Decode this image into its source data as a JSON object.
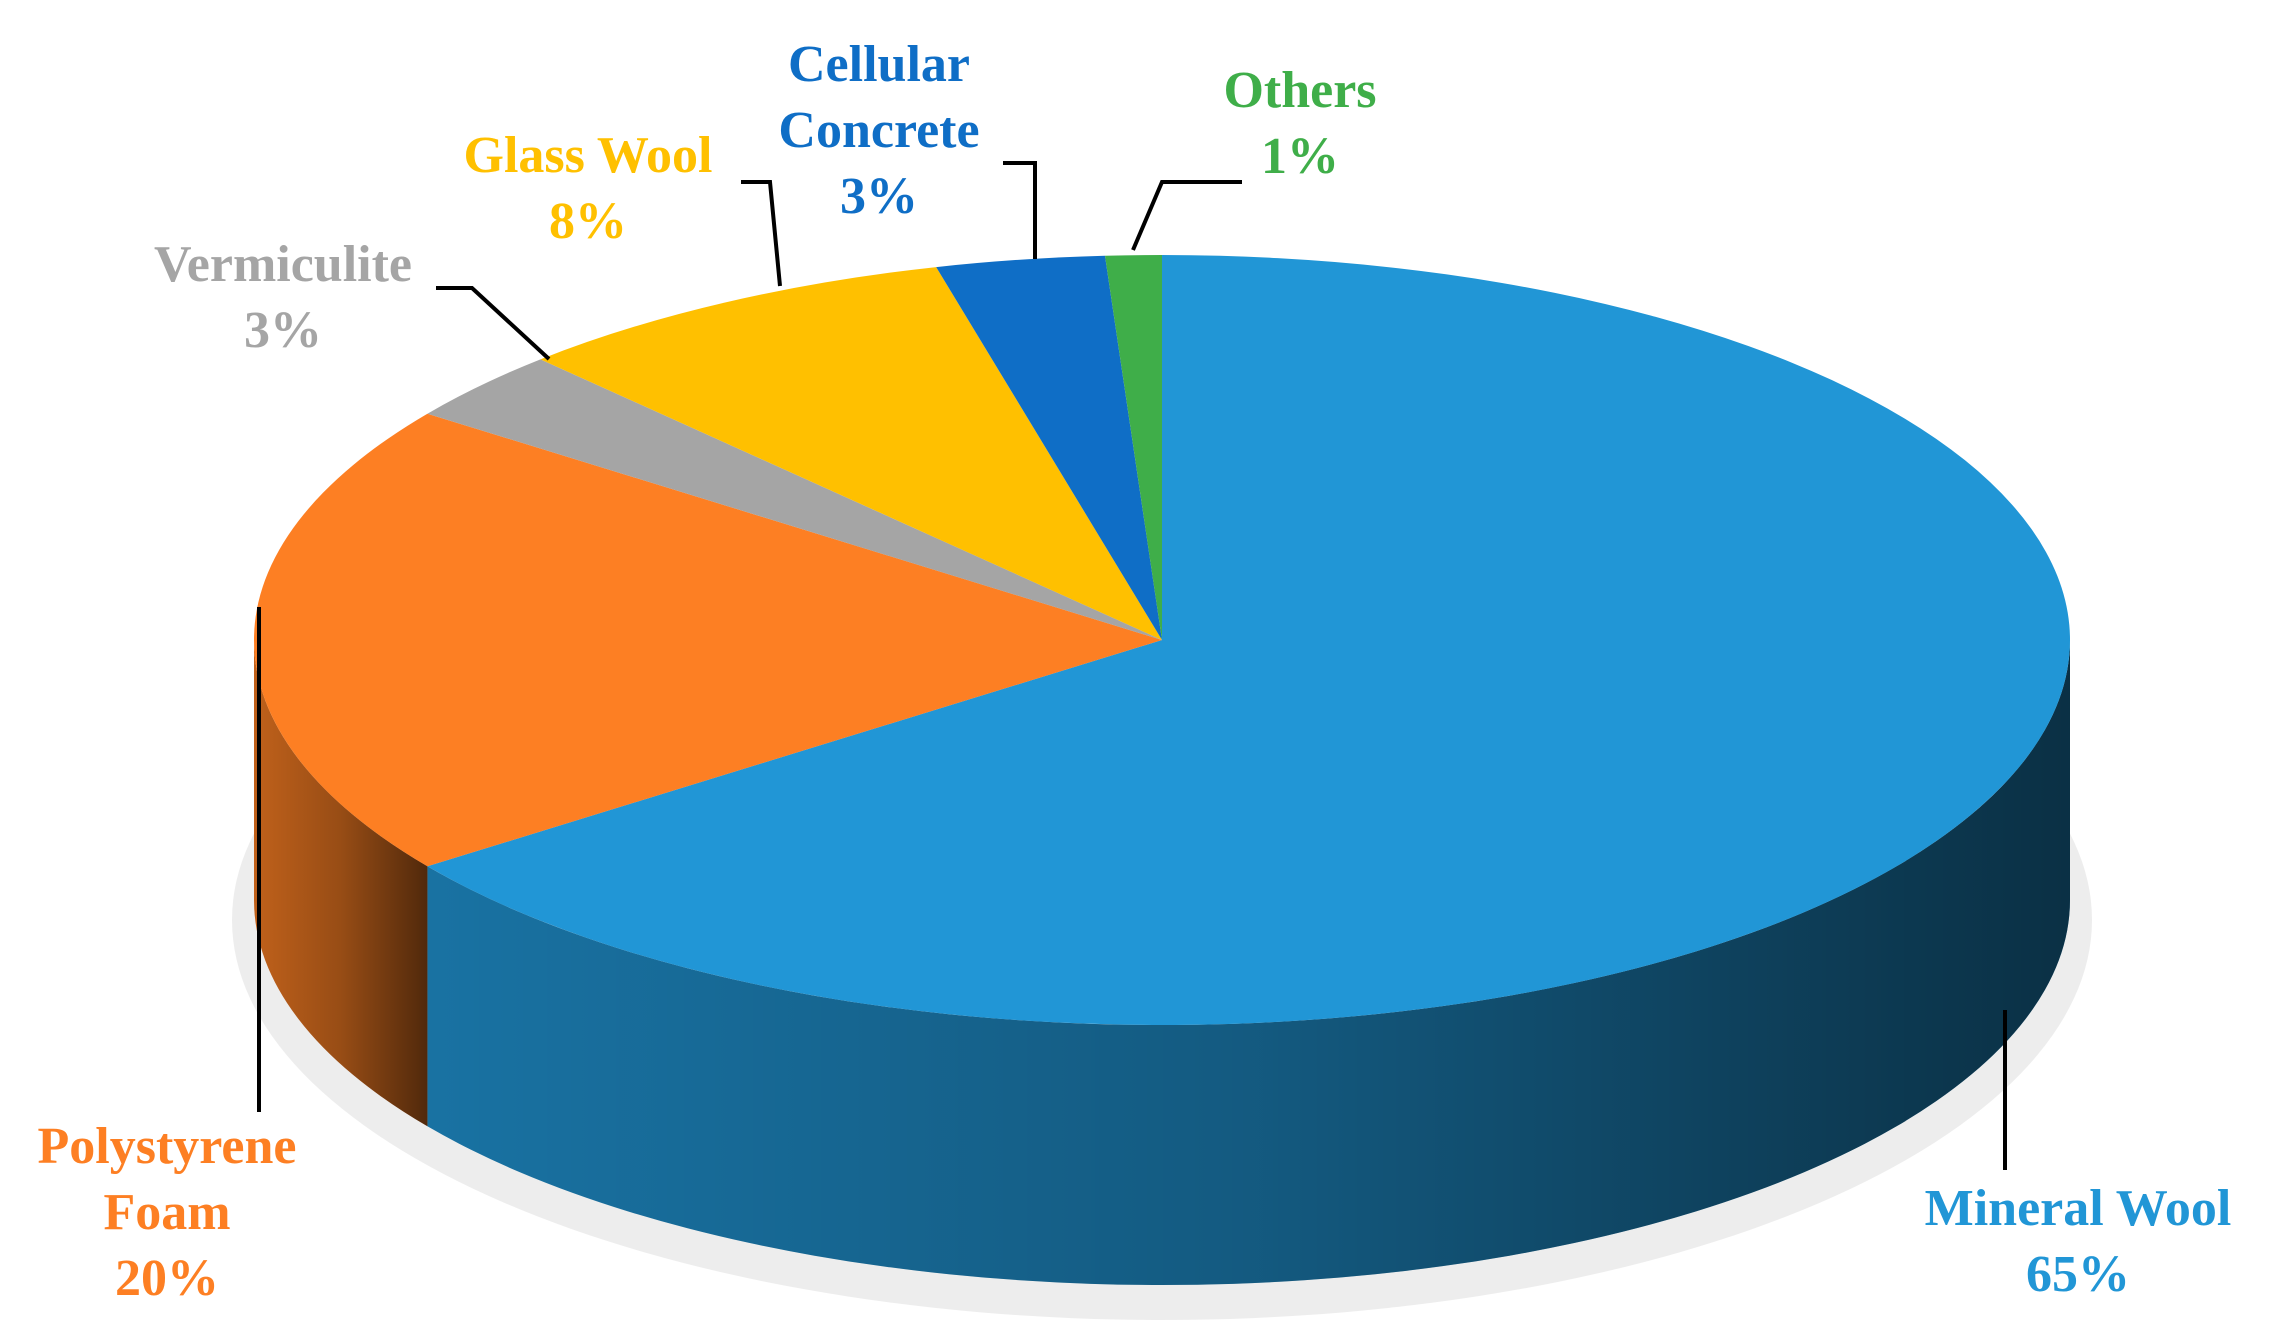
{
  "chart_data": {
    "type": "pie3d",
    "categories": [
      "Mineral Wool",
      "Polystyrene Foam",
      "Vermiculite",
      "Glass Wool",
      "Cellular Concrete",
      "Others"
    ],
    "values": [
      65,
      20,
      3,
      8,
      3,
      1
    ],
    "value_labels": [
      "65%",
      "20%",
      "3%",
      "8%",
      "3%",
      "1%"
    ],
    "colors": [
      "#2196d6",
      "#fd7f23",
      "#a5a5a5",
      "#ffc000",
      "#0f6ec6",
      "#3fae49"
    ]
  }
}
